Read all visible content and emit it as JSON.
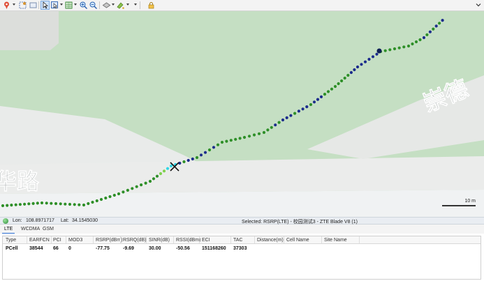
{
  "toolbar": {
    "buttons": [
      "pin-tool-icon",
      "frame-select-icon",
      "pointer-icon",
      "select-area-icon",
      "table-grid-icon",
      "zoom-in-icon",
      "zoom-out-icon",
      "layer-icon",
      "paint-icon",
      "lock-icon"
    ]
  },
  "map": {
    "street_label_right": "崇德",
    "street_label_left": "华路",
    "scale_label": "10 m",
    "colors": {
      "dark_blue": "#1c2c8c",
      "green": "#2e8f28",
      "light_green": "#7fd14d",
      "cyan": "#31d7e6"
    }
  },
  "status": {
    "lon_label": "Lon:",
    "lon_value": "108.8971717",
    "lat_label": "Lat:",
    "lat_value": "34.1545030",
    "selected_text": "Selected: RSRP(LTE) - 校园测试3 - ZTE Blade V8 (1)"
  },
  "panel": {
    "tabs": [
      "LTE",
      "WCDMA",
      "GSM"
    ],
    "active_tab": "LTE",
    "columns": [
      "Type",
      "EARFCN",
      "PCI",
      "MOD3",
      "RSRP(dBm)",
      "RSRQ(dB)",
      "SINR(dB)",
      "RSSI(dBm)",
      "ECI",
      "TAC",
      "Distance(m)",
      "Cell Name",
      "Site Name"
    ],
    "rows": [
      [
        "PCell",
        "38544",
        "66",
        "0",
        "-77.75",
        "-9.69",
        "30.00",
        "-50.56",
        "151168260",
        "37303",
        "",
        "",
        ""
      ]
    ]
  }
}
